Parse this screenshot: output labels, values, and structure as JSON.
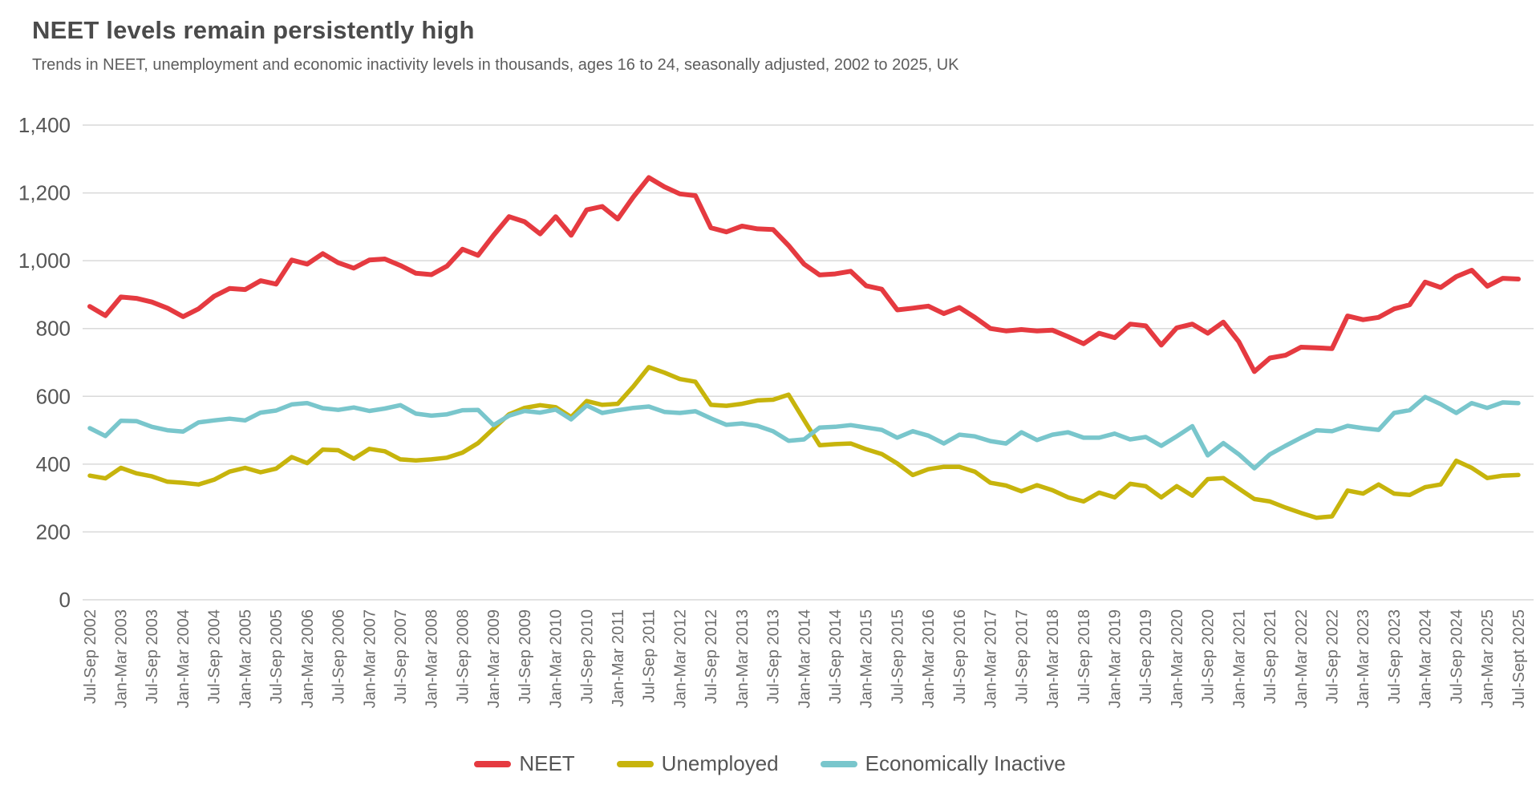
{
  "header": {
    "title": "NEET levels remain persistently high",
    "subtitle": "Trends in NEET, unemployment and economic inactivity levels in thousands, ages 16 to 24, seasonally adjusted, 2002 to 2025, UK"
  },
  "colors": {
    "neet": "#e53a40",
    "unemployed": "#c7b40c",
    "inactive": "#79c6cc",
    "grid": "#d9d9d9",
    "title_text": "#4b4b4b",
    "subtitle_text": "#5d5d5d",
    "y_tick_text": "#565656",
    "x_tick_text": "#6e6e6e"
  },
  "chart_data": {
    "type": "line",
    "title": "NEET levels remain persistently high",
    "subtitle": "Trends in NEET, unemployment and economic inactivity levels in thousands, ages 16 to 24, seasonally adjusted, 2002 to 2025, UK",
    "ylabel": "",
    "xlabel": "",
    "ylim": [
      0,
      1400
    ],
    "y_tick_labels": [
      "0",
      "200",
      "400",
      "600",
      "800",
      "1,000",
      "1,200",
      "1,400"
    ],
    "grid": "horizontal",
    "legend_position": "bottom-center",
    "x_unit": "quarters, Jul-Sep 2002 to Jul-Sep 2025 (labels shown every other quarter)",
    "x_tick_labels": [
      "Jul-Sep 2002",
      "Jan-Mar 2003",
      "Jul-Sep 2003",
      "Jan-Mar 2004",
      "Jul-Sep 2004",
      "Jan-Mar 2005",
      "Jul-Sep 2005",
      "Jan-Mar 2006",
      "Jul-Sep 2006",
      "Jan-Mar 2007",
      "Jul-Sep 2007",
      "Jan-Mar 2008",
      "Jul-Sep 2008",
      "Jan-Mar 2009",
      "Jul-Sep 2009",
      "Jan-Mar 2010",
      "Jul-Sep 2010",
      "Jan-Mar 2011",
      "Jul-Sep 2011",
      "Jan-Mar 2012",
      "Jul-Sep 2012",
      "Jan-Mar 2013",
      "Jul-Sep 2013",
      "Jan-Mar 2014",
      "Jul-Sep 2014",
      "Jan-Mar 2015",
      "Jul-Sep 2015",
      "Jan-Mar 2016",
      "Jul-Sep 2016",
      "Jan-Mar 2017",
      "Jul-Sep 2017",
      "Jan-Mar 2018",
      "Jul-Sep 2018",
      "Jan-Mar 2019",
      "Jul-Sep 2019",
      "Jan-Mar 2020",
      "Jul-Sep 2020",
      "Jan-Mar 2021",
      "Jul-Sep 2021",
      "Jan-Mar 2022",
      "Jul-Sep 2022",
      "Jan-Mar 2023",
      "Jul-Sep 2023",
      "Jan-Mar 2024",
      "Jul-Sep 2024",
      "Jan-Mar 2025",
      "Jul-Sept 2025"
    ],
    "series": [
      {
        "name": "NEET",
        "color": "#e53a40",
        "stroke_width": 6,
        "values": [
          865,
          838,
          893,
          889,
          878,
          860,
          835,
          858,
          895,
          918,
          915,
          941,
          931,
          1002,
          990,
          1021,
          994,
          978,
          1002,
          1005,
          986,
          963,
          959,
          984,
          1034,
          1016,
          1075,
          1130,
          1115,
          1079,
          1130,
          1075,
          1150,
          1160,
          1123,
          1188,
          1245,
          1218,
          1197,
          1192,
          1097,
          1085,
          1102,
          1094,
          1092,
          1045,
          990,
          958,
          961,
          969,
          926,
          916,
          855,
          860,
          866,
          844,
          862,
          833,
          800,
          793,
          797,
          793,
          795,
          776,
          755,
          786,
          773,
          813,
          808,
          751,
          802,
          813,
          786,
          819,
          761,
          673,
          713,
          721,
          745,
          743,
          741,
          837,
          826,
          833,
          858,
          870,
          937,
          921,
          953,
          972,
          925,
          948,
          946
        ]
      },
      {
        "name": "Unemployed",
        "color": "#c7b40c",
        "stroke_width": 5.5,
        "values": [
          366,
          358,
          389,
          373,
          364,
          348,
          345,
          340,
          354,
          378,
          389,
          376,
          387,
          421,
          403,
          443,
          441,
          416,
          445,
          438,
          414,
          411,
          414,
          419,
          434,
          462,
          505,
          547,
          566,
          574,
          568,
          539,
          586,
          575,
          578,
          629,
          686,
          670,
          651,
          643,
          575,
          572,
          578,
          588,
          590,
          605,
          530,
          456,
          459,
          461,
          444,
          430,
          402,
          368,
          385,
          392,
          392,
          378,
          345,
          337,
          320,
          338,
          323,
          302,
          290,
          316,
          302,
          342,
          335,
          302,
          335,
          307,
          356,
          359,
          328,
          297,
          290,
          272,
          256,
          242,
          246,
          322,
          313,
          340,
          313,
          309,
          332,
          340,
          410,
          389,
          359,
          366,
          368
        ]
      },
      {
        "name": "Economically Inactive",
        "color": "#79c6cc",
        "stroke_width": 5.5,
        "values": [
          506,
          483,
          528,
          527,
          510,
          500,
          496,
          523,
          529,
          534,
          529,
          552,
          558,
          576,
          580,
          565,
          560,
          567,
          557,
          564,
          574,
          549,
          543,
          547,
          559,
          560,
          515,
          543,
          557,
          552,
          561,
          532,
          573,
          551,
          559,
          566,
          570,
          554,
          551,
          556,
          535,
          516,
          520,
          513,
          497,
          469,
          473,
          508,
          510,
          515,
          508,
          501,
          478,
          497,
          484,
          461,
          487,
          482,
          468,
          461,
          494,
          471,
          487,
          494,
          478,
          478,
          490,
          473,
          480,
          454,
          482,
          512,
          426,
          462,
          429,
          388,
          429,
          454,
          478,
          500,
          497,
          513,
          506,
          501,
          551,
          559,
          598,
          577,
          551,
          580,
          566,
          582,
          580
        ]
      }
    ]
  }
}
